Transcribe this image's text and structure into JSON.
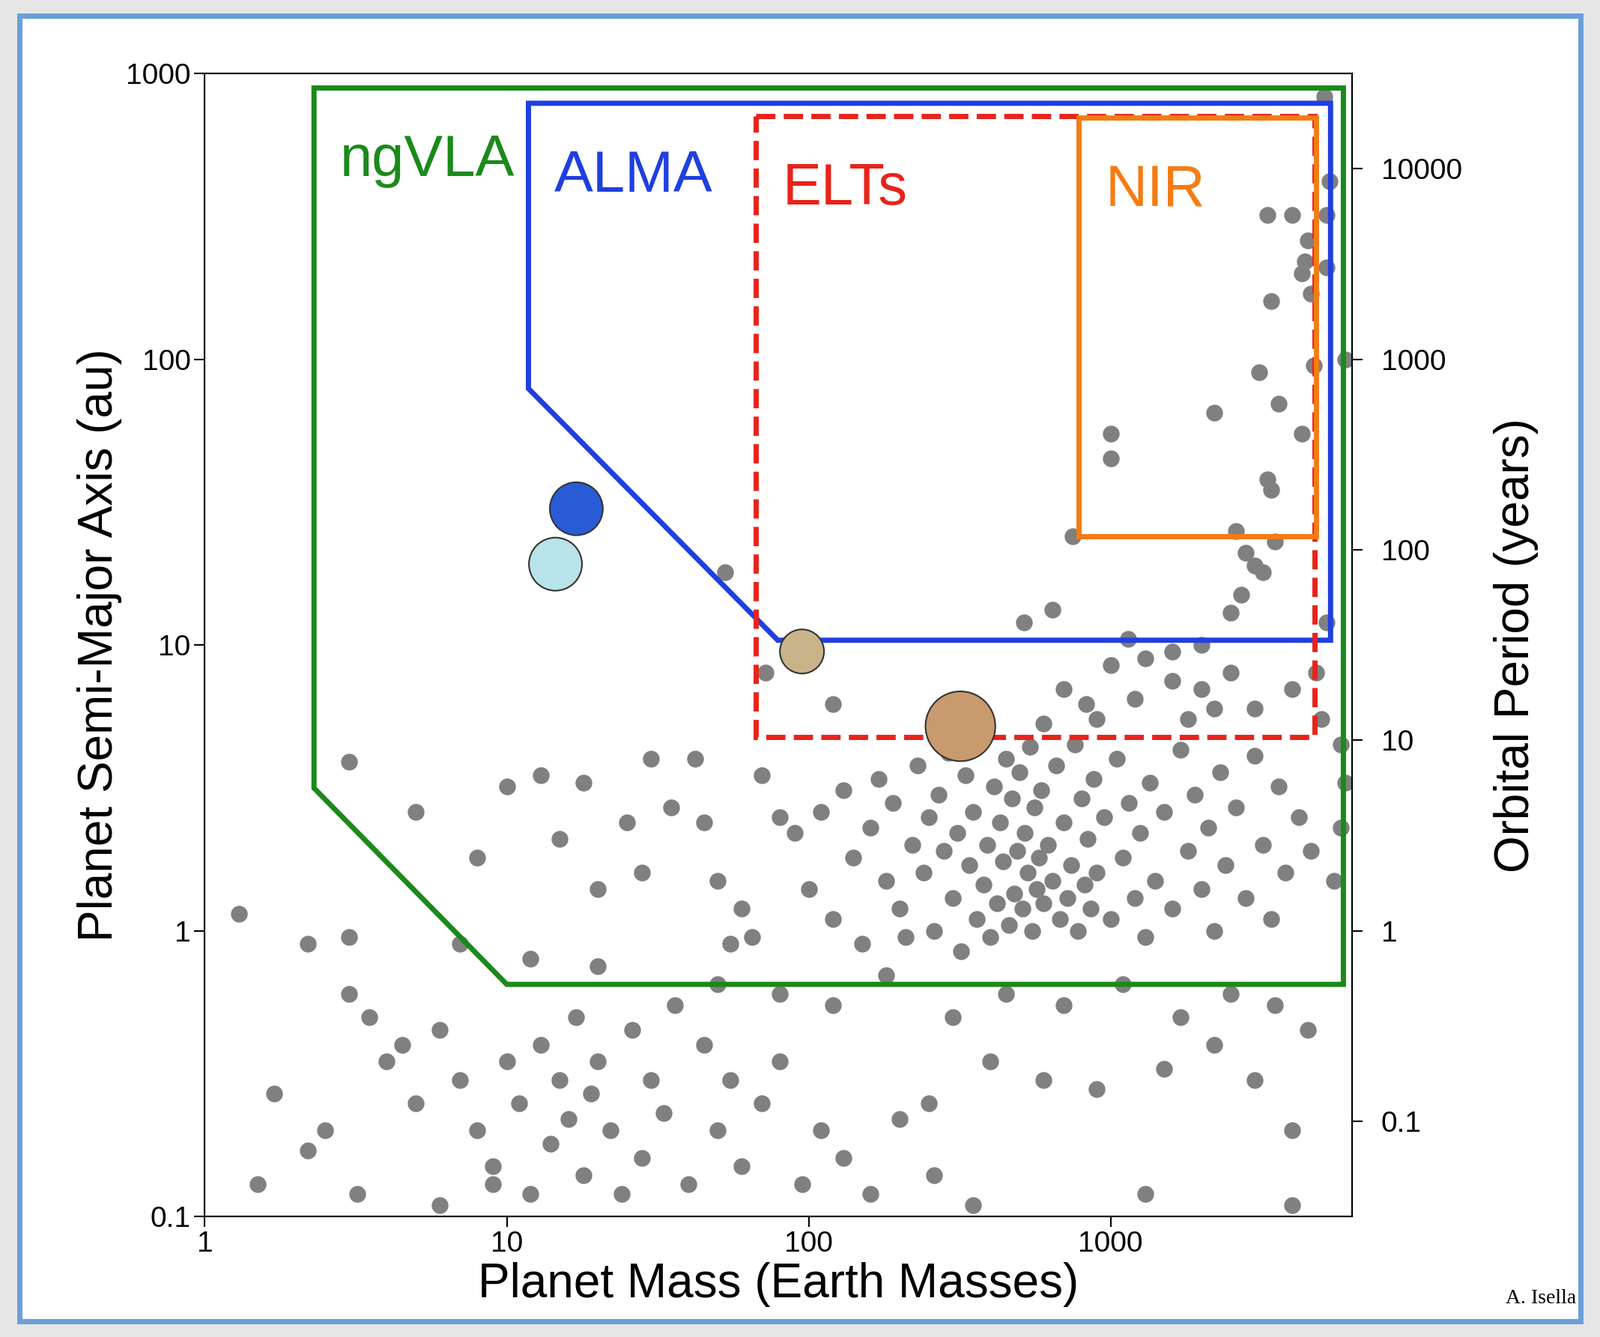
{
  "chart_data": {
    "type": "scatter",
    "xlabel": "Planet Mass (Earth Masses)",
    "ylabel": "Planet Semi-Major Axis (au)",
    "y2label": "Orbital Period (years)",
    "credit": "A. Isella",
    "log": true,
    "xlim": [
      1,
      6300
    ],
    "xticks": [
      1,
      10,
      100,
      1000
    ],
    "ylim": [
      0.1,
      1000
    ],
    "yticks": [
      0.1,
      1,
      10,
      100,
      1000
    ],
    "y2lim": [
      0.0316,
      31623
    ],
    "y2ticks": [
      0.1,
      1,
      10,
      100,
      1000,
      10000
    ],
    "color": "#808080",
    "x": [
      5100,
      5300,
      5200,
      5200,
      3300,
      4000,
      4500,
      4400,
      4300,
      4600,
      3400,
      4700,
      6000,
      3100,
      3600,
      2200,
      4300,
      1000,
      1000,
      3300,
      3400,
      2600,
      3500,
      750,
      2800,
      3000,
      3200,
      2700,
      2500,
      53,
      515,
      640,
      1140,
      5200,
      2000,
      1600,
      72,
      120,
      830,
      700,
      1000,
      1300,
      1600,
      2000,
      2500,
      3000,
      4000,
      4800,
      1200,
      900,
      600,
      1800,
      2200,
      5000,
      5800,
      6000,
      5800,
      5500,
      3,
      5,
      1.3,
      2.2,
      3,
      10,
      13,
      18,
      30,
      42,
      15,
      8,
      7,
      12,
      20,
      25,
      28,
      20,
      35,
      45,
      50,
      60,
      55,
      65,
      80,
      70,
      90,
      100,
      110,
      120,
      130,
      140,
      150,
      160,
      170,
      180,
      190,
      200,
      210,
      220,
      230,
      240,
      250,
      260,
      270,
      280,
      290,
      300,
      310,
      320,
      330,
      340,
      350,
      360,
      370,
      380,
      390,
      400,
      410,
      420,
      430,
      440,
      450,
      460,
      470,
      480,
      490,
      500,
      510,
      520,
      530,
      540,
      550,
      560,
      570,
      580,
      590,
      600,
      620,
      640,
      660,
      680,
      700,
      720,
      740,
      760,
      780,
      800,
      820,
      840,
      860,
      880,
      900,
      950,
      1000,
      1050,
      1100,
      1150,
      1200,
      1250,
      1300,
      1350,
      1400,
      1500,
      1600,
      1700,
      1800,
      1900,
      2000,
      2100,
      2200,
      2300,
      2400,
      2600,
      2800,
      3000,
      3200,
      3400,
      3600,
      3800,
      4200,
      4600,
      50,
      80,
      120,
      180,
      300,
      450,
      700,
      1100,
      1700,
      2500,
      3500,
      4500,
      400,
      600,
      250,
      900,
      1500,
      2200,
      3000,
      4000,
      1.7,
      2.5,
      3,
      3.5,
      4,
      4.5,
      5,
      6,
      7,
      8,
      9,
      10,
      11,
      12,
      13,
      14,
      15,
      16,
      17,
      18,
      19,
      20,
      22,
      24,
      26,
      28,
      30,
      33,
      36,
      40,
      45,
      50,
      55,
      60,
      70,
      80,
      95,
      110,
      130,
      160,
      200,
      260,
      350,
      1.5,
      2.2,
      3.2,
      6,
      9,
      1300,
      4000
    ],
    "values": [
      830,
      420,
      320,
      210,
      320,
      320,
      260,
      220,
      200,
      170,
      160,
      95,
      100,
      90,
      70,
      65,
      55,
      55,
      45,
      38,
      35,
      25,
      23,
      24,
      21,
      19,
      18,
      15,
      13,
      18,
      12,
      13.3,
      10.5,
      12,
      10,
      9.5,
      8,
      6.2,
      6.2,
      7,
      8.5,
      9,
      7.5,
      7,
      8,
      6,
      7,
      8,
      6.5,
      5.5,
      5.3,
      5.5,
      6,
      5.5,
      4.5,
      3.3,
      2.3,
      1.5,
      3.9,
      2.6,
      1.15,
      0.9,
      0.95,
      3.2,
      3.5,
      3.3,
      4,
      4,
      2.1,
      1.8,
      0.9,
      0.8,
      0.75,
      2.4,
      1.6,
      1.4,
      2.7,
      2.4,
      1.5,
      1.2,
      0.9,
      0.95,
      2.5,
      3.5,
      2.2,
      1.4,
      2.6,
      1.1,
      3.1,
      1.8,
      0.9,
      2.3,
      3.4,
      1.5,
      2.8,
      1.2,
      0.95,
      2.0,
      3.8,
      1.6,
      2.5,
      1.0,
      3.0,
      1.9,
      4.2,
      1.3,
      2.2,
      0.85,
      3.5,
      1.7,
      2.6,
      1.1,
      4.6,
      1.45,
      2.0,
      0.95,
      3.2,
      1.25,
      2.4,
      1.75,
      4.0,
      1.05,
      2.9,
      1.35,
      1.9,
      3.6,
      1.2,
      2.2,
      1.6,
      4.4,
      1.0,
      2.7,
      1.4,
      1.8,
      3.1,
      1.25,
      2.0,
      1.5,
      3.8,
      1.1,
      2.4,
      1.3,
      1.7,
      4.5,
      1.0,
      2.9,
      1.45,
      2.1,
      1.2,
      3.4,
      1.6,
      2.5,
      1.1,
      4.0,
      1.8,
      2.8,
      1.3,
      2.2,
      0.95,
      3.3,
      1.5,
      2.6,
      1.2,
      4.3,
      1.9,
      3.0,
      1.4,
      2.3,
      1.0,
      3.6,
      1.7,
      2.7,
      1.3,
      4.1,
      2.0,
      1.1,
      3.2,
      1.6,
      2.5,
      1.9,
      0.65,
      0.6,
      0.55,
      0.7,
      0.5,
      0.6,
      0.55,
      0.65,
      0.5,
      0.6,
      0.55,
      0.45,
      0.35,
      0.3,
      0.25,
      0.28,
      0.33,
      0.4,
      0.3,
      0.2,
      0.27,
      0.2,
      0.6,
      0.5,
      0.35,
      0.4,
      0.25,
      0.45,
      0.3,
      0.2,
      0.15,
      0.35,
      0.25,
      0.12,
      0.4,
      0.18,
      0.3,
      0.22,
      0.5,
      0.14,
      0.27,
      0.35,
      0.2,
      0.12,
      0.45,
      0.16,
      0.3,
      0.23,
      0.55,
      0.13,
      0.4,
      0.2,
      0.3,
      0.15,
      0.25,
      0.35,
      0.13,
      0.2,
      0.16,
      0.12,
      0.22,
      0.14,
      0.11,
      0.13,
      0.17,
      0.12,
      0.11,
      0.13,
      0.12,
      0.11
    ],
    "regions": [
      {
        "name": "ngVLA",
        "color": "#1a8a1a",
        "line_style": "solid",
        "x": [
          2.3,
          5900,
          5900,
          10,
          2.3
        ],
        "y": [
          890,
          890,
          0.65,
          0.65,
          3.16
        ]
      },
      {
        "name": "ALMA",
        "color": "#1f3fe0",
        "line_style": "solid",
        "x": [
          11.8,
          5350,
          5350,
          79,
          11.8
        ],
        "y": [
          787,
          787,
          10.4,
          10.4,
          79
        ]
      },
      {
        "name": "ELTs",
        "color": "#e8231a",
        "line_style": "dashed",
        "x": [
          67,
          4740,
          4740,
          67
        ],
        "y": [
          708,
          708,
          4.77,
          4.77
        ]
      },
      {
        "name": "NIR",
        "color": "#f57c14",
        "line_style": "solid",
        "x": [
          785,
          4800,
          4800,
          785
        ],
        "y": [
          700,
          700,
          24.1,
          24.1
        ]
      }
    ],
    "planets": {
      "x": [
        17,
        14.5,
        95,
        318
      ],
      "values": [
        30,
        19.2,
        9.5,
        5.2
      ],
      "colors": [
        "#2a5bd7",
        "#b8e3e8",
        "#c9b48a",
        "#c89a6e"
      ]
    }
  }
}
